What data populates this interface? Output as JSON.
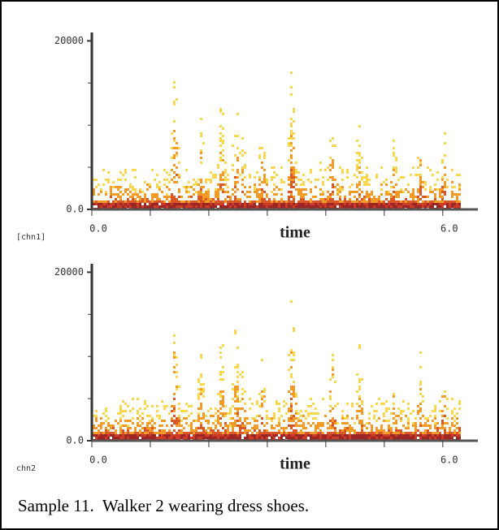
{
  "chart_data": [
    {
      "type": "spectrogram",
      "channel_label": "[chn1]",
      "xlabel": "time",
      "xlim": [
        0,
        6.6
      ],
      "xticks": [
        {
          "value": 0,
          "label": "0.0"
        },
        {
          "value": 6,
          "label": "6.0"
        }
      ],
      "xminorticks": [
        1,
        2,
        3,
        4,
        5
      ],
      "ylim": [
        0,
        21000
      ],
      "yticks": [
        {
          "value": 0,
          "label": "0.0"
        },
        20000
      ],
      "yminorticks": [
        5000,
        10000,
        15000
      ]
    },
    {
      "type": "spectrogram",
      "channel_label": "chn2",
      "xlabel": "time",
      "xlim": [
        0,
        6.6
      ],
      "xticks": [
        {
          "value": 0,
          "label": "0.0"
        },
        {
          "value": 6,
          "label": "6.0"
        }
      ],
      "xminorticks": [
        1,
        2,
        3,
        4,
        5
      ],
      "ylim": [
        0,
        21000
      ],
      "yticks": [
        {
          "value": 0,
          "label": "0.0"
        },
        20000
      ],
      "yminorticks": [
        5000,
        10000,
        15000
      ]
    }
  ],
  "caption": "Sample 11.  Walker 2 wearing dress shoes."
}
